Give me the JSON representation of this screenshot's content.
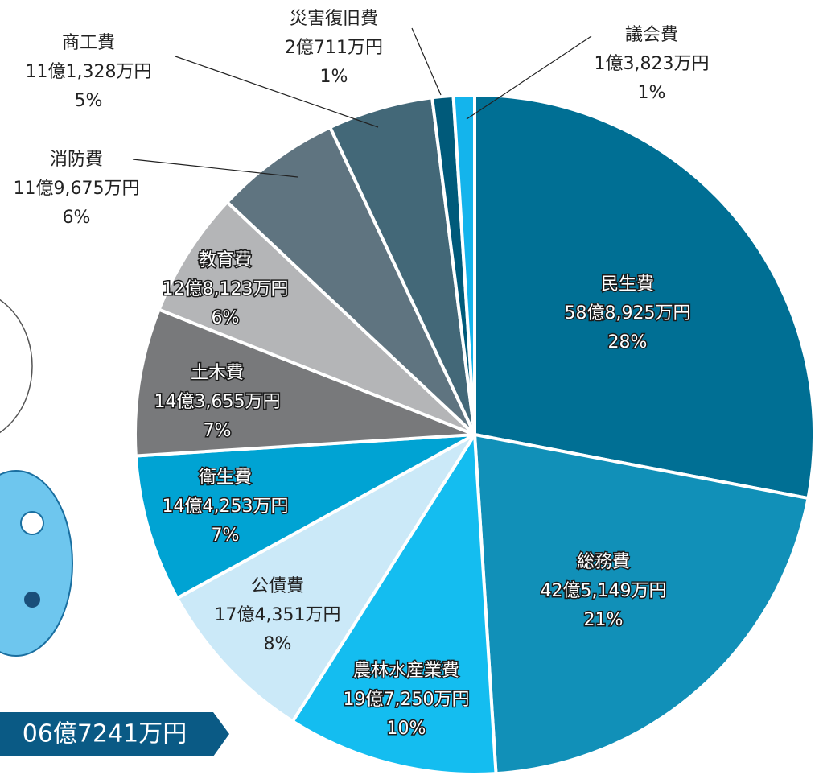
{
  "chart_data": {
    "type": "pie",
    "categories": [
      "民生費",
      "総務費",
      "農林水産業費",
      "公債費",
      "衛生費",
      "土木費",
      "教育費",
      "消防費",
      "商工費",
      "災害復旧費",
      "議会費"
    ],
    "amount_labels": [
      "58億8,925万円",
      "42億5,149万円",
      "19億7,250万円",
      "17億4,351万円",
      "14億4,253万円",
      "14億3,655万円",
      "12億8,123万円",
      "11億9,675万円",
      "11億1,328万円",
      "2億711万円",
      "1億3,823万円"
    ],
    "values": [
      28,
      21,
      10,
      8,
      7,
      7,
      6,
      6,
      5,
      1,
      1
    ],
    "value_labels": [
      "28%",
      "21%",
      "10%",
      "8%",
      "7%",
      "7%",
      "6%",
      "6%",
      "5%",
      "1%",
      "1%"
    ],
    "colors": [
      "#006f94",
      "#1190b8",
      "#14bdf0",
      "#cbe9f8",
      "#00a3d3",
      "#78797b",
      "#b4b5b7",
      "#5f7480",
      "#436878",
      "#005a7a",
      "#14b4ec"
    ],
    "total_label": "06億7241万円"
  }
}
